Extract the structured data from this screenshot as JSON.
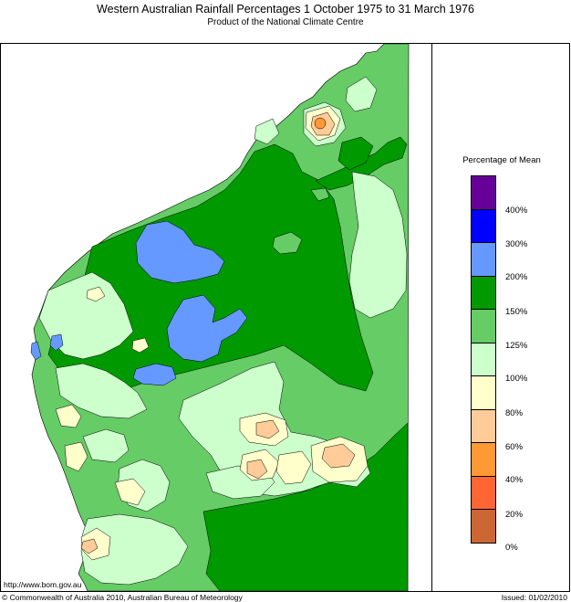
{
  "header": {
    "title": "Western Australian Rainfall Percentages 1 October 1975 to 31 March 1976",
    "subtitle": "Product of the National Climate Centre"
  },
  "legend": {
    "title": "Percentage of Mean",
    "bands": [
      {
        "color": "#660099"
      },
      {
        "color": "#0000ff"
      },
      {
        "color": "#6699ff"
      },
      {
        "color": "#009900"
      },
      {
        "color": "#66cc66"
      },
      {
        "color": "#ccffcc"
      },
      {
        "color": "#ffffcc"
      },
      {
        "color": "#ffcc99"
      },
      {
        "color": "#ff9933"
      },
      {
        "color": "#ff6633"
      },
      {
        "color": "#cc6633"
      }
    ],
    "labels": [
      "400%",
      "300%",
      "200%",
      "150%",
      "125%",
      "100%",
      "80%",
      "60%",
      "40%",
      "20%",
      "0%"
    ]
  },
  "map_colors": {
    "above_200": "#6699ff",
    "150_200": "#009900",
    "125_150": "#66cc66",
    "100_125": "#ccffcc",
    "80_100": "#ffffcc",
    "60_80": "#ffcc99",
    "40_60": "#ff9933"
  },
  "footer": {
    "url": "http://www.bom.gov.au",
    "copyright": "© Commonwealth of Australia 2010, Australian Bureau of Meteorology",
    "issued": "Issued: 01/02/2010"
  }
}
